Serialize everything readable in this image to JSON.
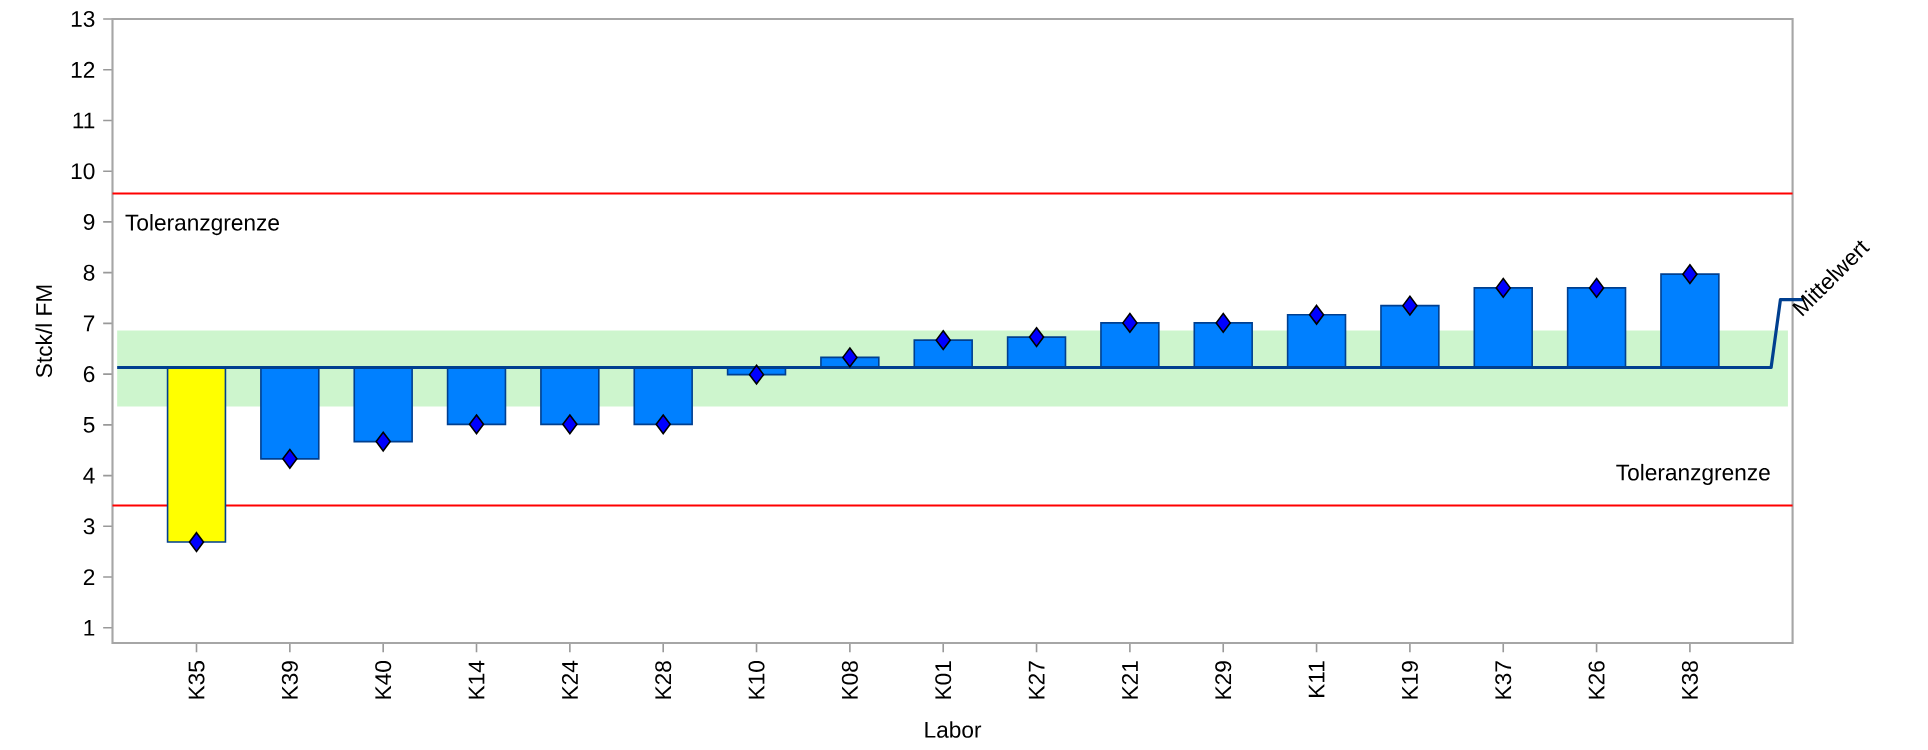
{
  "chart_data": {
    "type": "bar",
    "xlabel": "Labor",
    "ylabel": "Stck/l FM",
    "categories": [
      "K35",
      "K39",
      "K40",
      "K14",
      "K24",
      "K28",
      "K10",
      "K08",
      "K01",
      "K27",
      "K21",
      "K29",
      "K11",
      "K19",
      "K37",
      "K26",
      "K38"
    ],
    "series": [
      {
        "base": [
          6.13,
          6.13,
          6.13,
          6.13,
          6.13,
          6.13,
          6.13,
          6.13,
          6.13,
          6.13,
          6.13,
          6.13,
          6.13,
          6.13,
          6.13,
          6.13,
          6.13
        ],
        "values": [
          -3.44,
          -1.8,
          -1.46,
          -1.12,
          -1.12,
          -1.12,
          -0.14,
          0.2,
          0.54,
          0.6,
          0.88,
          0.88,
          1.04,
          1.22,
          1.57,
          1.57,
          1.84
        ],
        "colors": [
          "#ffff00",
          "#0080ff",
          "#0080ff",
          "#0080ff",
          "#0080ff",
          "#0080ff",
          "#0080ff",
          "#0080ff",
          "#0080ff",
          "#0080ff",
          "#0080ff",
          "#0080ff",
          "#0080ff",
          "#0080ff",
          "#0080ff",
          "#0080ff",
          "#0080ff"
        ]
      },
      {
        "type": "scatter",
        "marker": "diamond",
        "color": "#0000ff",
        "values": [
          2.69,
          4.33,
          4.67,
          5.01,
          5.01,
          5.01,
          5.99,
          6.33,
          6.67,
          6.73,
          7.01,
          7.01,
          7.17,
          7.35,
          7.7,
          7.7,
          7.97
        ]
      }
    ],
    "ylim": [
      0.7,
      13
    ],
    "yticks": [
      1,
      2,
      3,
      4,
      5,
      6,
      7,
      8,
      9,
      10,
      11,
      12,
      13
    ],
    "ref_lines": [
      {
        "axis": "y",
        "value": 6.13,
        "label": "Mittelwert",
        "color": "#003f8f",
        "line_style": "solid"
      },
      {
        "axis": "y",
        "value": 9.56,
        "label": "Toleranzgrenze",
        "color": "#ff0000",
        "line_style": "solid"
      },
      {
        "axis": "y",
        "value": 3.41,
        "label": "Toleranzgrenze",
        "color": "#ff0000",
        "line_style": "solid"
      }
    ],
    "bands": [
      {
        "axis": "y",
        "from": 5.36,
        "to": 6.86,
        "color": "#cdf5cd"
      }
    ]
  }
}
